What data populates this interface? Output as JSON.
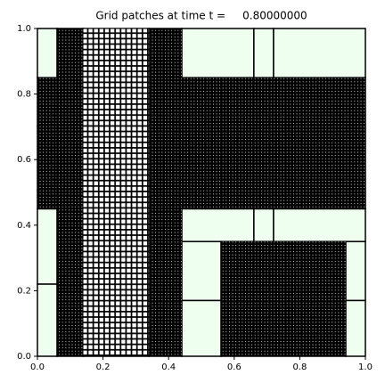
{
  "chart_data": {
    "type": "patches",
    "title": "Grid patches at time t =     0.80000000",
    "xlim": [
      0,
      1
    ],
    "ylim": [
      0,
      1
    ],
    "xticks": [
      {
        "value": 0,
        "label": "0.0"
      },
      {
        "value": 0.2,
        "label": "0.2"
      },
      {
        "value": 0.4,
        "label": "0.4"
      },
      {
        "value": 0.6,
        "label": "0.6"
      },
      {
        "value": 0.8,
        "label": "0.8"
      },
      {
        "value": 1,
        "label": "1.0"
      }
    ],
    "yticks": [
      {
        "value": 0,
        "label": "0.0"
      },
      {
        "value": 0.2,
        "label": "0.2"
      },
      {
        "value": 0.4,
        "label": "0.4"
      },
      {
        "value": 0.6,
        "label": "0.6"
      },
      {
        "value": 0.8,
        "label": "0.8"
      },
      {
        "value": 1,
        "label": "1.0"
      }
    ],
    "level_fill": [
      "#efffef",
      "#ffffff",
      "#000000"
    ],
    "patches": [
      {
        "level": 1,
        "x": [
          0,
          0.06
        ],
        "y": [
          0.85,
          1
        ]
      },
      {
        "level": 1,
        "x": [
          0.44,
          0.66
        ],
        "y": [
          0.85,
          1
        ]
      },
      {
        "level": 1,
        "x": [
          0.66,
          0.72
        ],
        "y": [
          0.85,
          1
        ]
      },
      {
        "level": 1,
        "x": [
          0.72,
          1
        ],
        "y": [
          0.85,
          1
        ]
      },
      {
        "level": 1,
        "x": [
          0,
          0.06
        ],
        "y": [
          0.22,
          0.45
        ]
      },
      {
        "level": 1,
        "x": [
          0,
          0.06
        ],
        "y": [
          0,
          0.22
        ]
      },
      {
        "level": 1,
        "x": [
          0.44,
          0.66
        ],
        "y": [
          0.35,
          0.45
        ]
      },
      {
        "level": 1,
        "x": [
          0.66,
          0.72
        ],
        "y": [
          0.35,
          0.45
        ]
      },
      {
        "level": 1,
        "x": [
          0.72,
          1
        ],
        "y": [
          0.35,
          0.45
        ]
      },
      {
        "level": 1,
        "x": [
          0.44,
          0.56
        ],
        "y": [
          0.17,
          0.35
        ]
      },
      {
        "level": 1,
        "x": [
          0.44,
          0.56
        ],
        "y": [
          0,
          0.17
        ]
      },
      {
        "level": 1,
        "x": [
          0.94,
          1
        ],
        "y": [
          0.17,
          0.35
        ]
      },
      {
        "level": 1,
        "x": [
          0.94,
          1
        ],
        "y": [
          0,
          0.17
        ]
      },
      {
        "level": 3,
        "x": [
          0,
          1
        ],
        "y": [
          0.45,
          0.85
        ]
      },
      {
        "level": 3,
        "x": [
          0.06,
          0.14
        ],
        "y": [
          0,
          1
        ]
      },
      {
        "level": 3,
        "x": [
          0.34,
          0.44
        ],
        "y": [
          0,
          1
        ]
      },
      {
        "level": 3,
        "x": [
          0.56,
          0.94
        ],
        "y": [
          0,
          0.35
        ]
      },
      {
        "level": 2,
        "x": [
          0.14,
          0.34
        ],
        "y": [
          0,
          1
        ]
      }
    ]
  }
}
